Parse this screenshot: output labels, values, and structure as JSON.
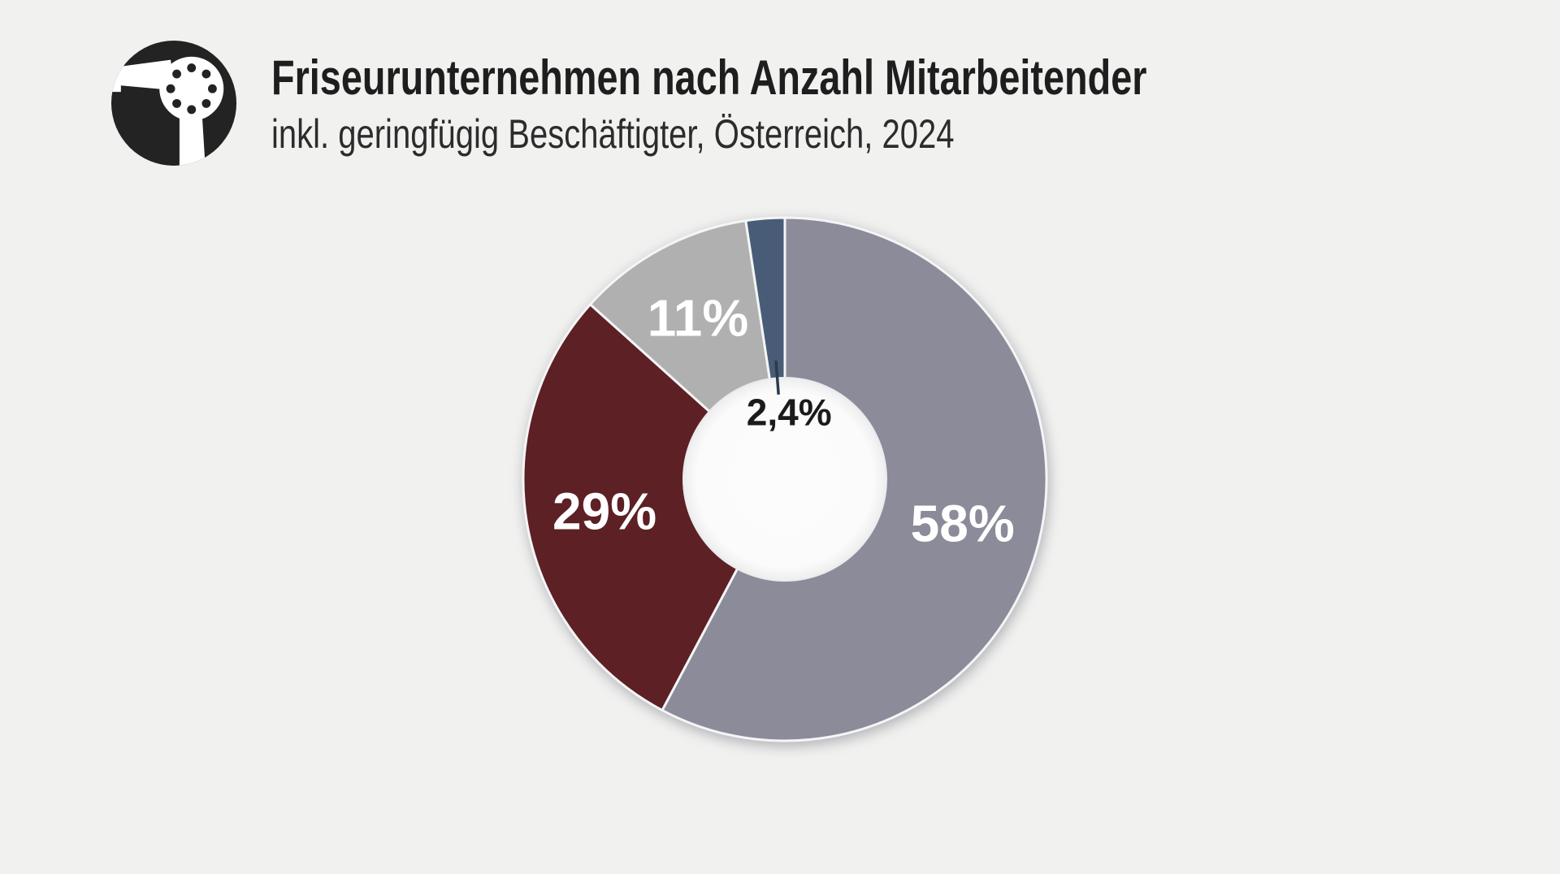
{
  "page": {
    "background_color": "#f1f1f0"
  },
  "header": {
    "logo": {
      "icon": "hair-dryer-icon",
      "background_color": "#232323",
      "foreground_color": "#ffffff"
    },
    "title": "Friseurunternehmen nach Anzahl Mitarbeitender",
    "subtitle": "inkl. geringfügig Beschäftigter, Österreich, 2024"
  },
  "chart_data": {
    "type": "pie",
    "variant": "donut",
    "title": "Friseurunternehmen nach Anzahl Mitarbeitender",
    "subtitle": "inkl. geringfügig Beschäftigter, Österreich, 2024",
    "value_unit": "%",
    "direction": "clockwise",
    "start_angle_deg": 0,
    "donut_hole_ratio": 0.39,
    "legend": "none",
    "gap_color": "#f4f5f6",
    "hole_color": "#fbfbfb",
    "callout_line_color": "#2c3a4c",
    "segments": [
      {
        "label": "58%",
        "value": 58,
        "color": "#8b8b9a",
        "label_color": "#ffffff",
        "label_placement": "inside"
      },
      {
        "label": "29%",
        "value": 29,
        "color": "#5d2024",
        "label_color": "#ffffff",
        "label_placement": "inside"
      },
      {
        "label": "11%",
        "value": 11,
        "color": "#b1b0b1",
        "label_color": "#ffffff",
        "label_placement": "inside"
      },
      {
        "label": "2,4%",
        "value": 2.4,
        "color": "#485c77",
        "label_color": "#1b1b1b",
        "label_placement": "callout-center"
      }
    ]
  }
}
